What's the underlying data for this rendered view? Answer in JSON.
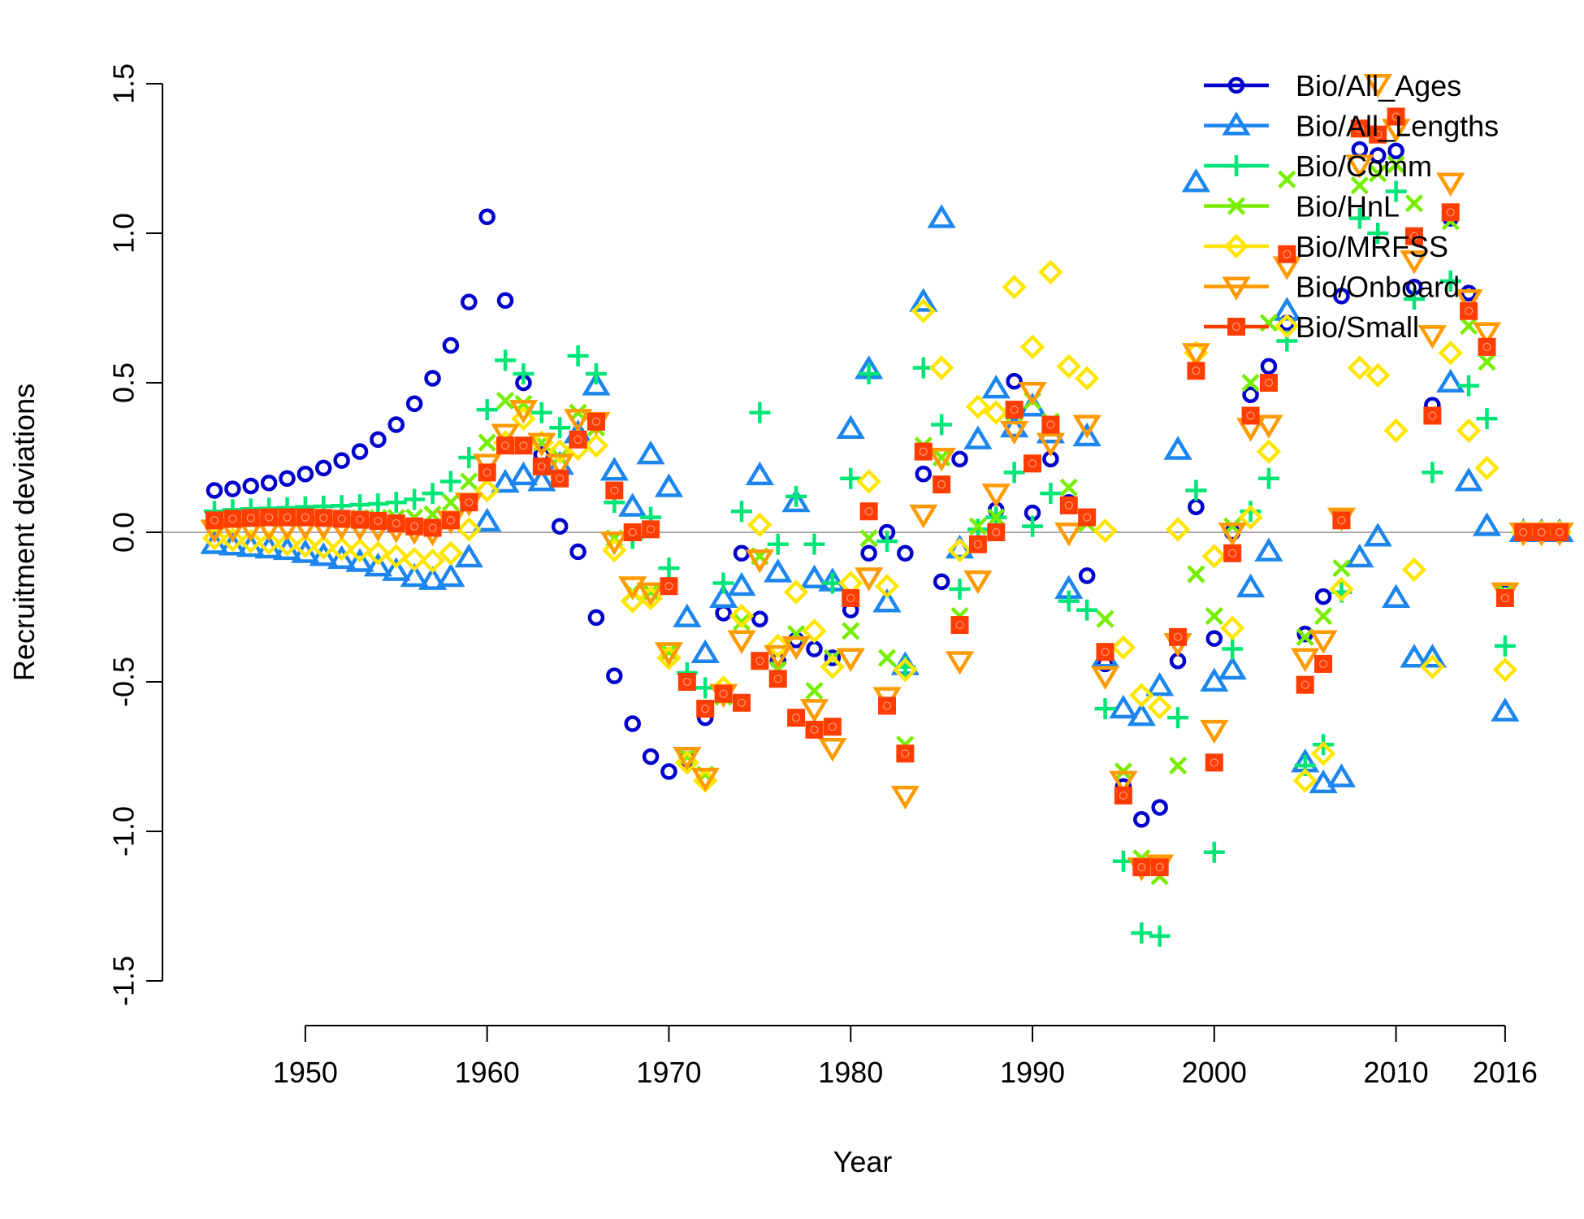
{
  "chart_data": {
    "type": "scatter",
    "title": "",
    "xlabel": "Year",
    "ylabel": "Recruitment deviations",
    "xlim": [
      1945,
      1947
    ],
    "ylim": [
      -1.5,
      1.5
    ],
    "x_ticks": [
      1950,
      1960,
      1970,
      1980,
      1990,
      2000,
      2010,
      2016
    ],
    "y_ticks": [
      -1.5,
      -1.0,
      -0.5,
      0.0,
      0.5,
      1.0,
      1.5
    ],
    "y_tick_labels": [
      "-1.5",
      "-1.0",
      "-0.5",
      "0.0",
      "0.5",
      "1.0",
      "1.5"
    ],
    "reference_line": 0,
    "grid": false,
    "legend_position": "top-right",
    "series": [
      {
        "name": "Bio/All_Ages",
        "color": "#0000CD",
        "marker": "circle",
        "x": [
          1945,
          1946,
          1947,
          1948,
          1949,
          1950,
          1951,
          1952,
          1953,
          1954,
          1955,
          1956,
          1957,
          1958,
          1959,
          1960,
          1961,
          1962,
          1963,
          1964,
          1965,
          1966,
          1967,
          1968,
          1969,
          1970,
          1971,
          1972,
          1973,
          1974,
          1975,
          1976,
          1977,
          1978,
          1979,
          1980,
          1981,
          1982,
          1983,
          1984,
          1985,
          1986,
          1987,
          1988,
          1989,
          1990,
          1991,
          1992,
          1993,
          1994,
          1995,
          1996,
          1997,
          1998,
          1999,
          2000,
          2001,
          2002,
          2003,
          2004,
          2005,
          2006,
          2007,
          2008,
          2009,
          2010,
          2011,
          2012,
          2013,
          2014,
          2015,
          2016,
          2017,
          2018,
          2019
        ],
        "y": [
          0.14,
          0.145,
          0.155,
          0.165,
          0.18,
          0.195,
          0.215,
          0.24,
          0.27,
          0.31,
          0.36,
          0.43,
          0.515,
          0.625,
          0.77,
          1.055,
          0.775,
          0.5,
          0.26,
          0.02,
          -0.065,
          -0.285,
          -0.48,
          -0.64,
          -0.75,
          -0.8,
          -0.76,
          -0.62,
          -0.27,
          -0.07,
          -0.29,
          -0.43,
          -0.36,
          -0.39,
          -0.42,
          -0.26,
          -0.07,
          0.0,
          -0.07,
          0.195,
          -0.165,
          0.245,
          -0.04,
          0.075,
          0.505,
          0.065,
          0.245,
          0.1,
          -0.145,
          -0.44,
          -0.85,
          -0.96,
          -0.92,
          -0.43,
          0.085,
          -0.355,
          0.0,
          0.46,
          0.555,
          0.7,
          -0.34,
          -0.215,
          0.79,
          1.28,
          1.26,
          1.275,
          0.82,
          0.425,
          1.05,
          0.8,
          0.62,
          -0.2,
          0.0,
          0.0,
          0.0
        ]
      },
      {
        "name": "Bio/All_Lengths",
        "color": "#1C86EE",
        "marker": "triangle",
        "x": [
          1945,
          1946,
          1947,
          1948,
          1949,
          1950,
          1951,
          1952,
          1953,
          1954,
          1955,
          1956,
          1957,
          1958,
          1959,
          1960,
          1961,
          1962,
          1963,
          1964,
          1965,
          1966,
          1967,
          1968,
          1969,
          1970,
          1971,
          1972,
          1973,
          1974,
          1975,
          1976,
          1977,
          1978,
          1979,
          1980,
          1981,
          1982,
          1983,
          1984,
          1985,
          1986,
          1987,
          1988,
          1989,
          1990,
          1991,
          1992,
          1993,
          1994,
          1995,
          1996,
          1997,
          1998,
          1999,
          2000,
          2001,
          2002,
          2003,
          2004,
          2005,
          2006,
          2007,
          2008,
          2009,
          2010,
          2011,
          2012,
          2013,
          2014,
          2015,
          2016,
          2017,
          2018,
          2019
        ],
        "y": [
          -0.04,
          -0.045,
          -0.05,
          -0.055,
          -0.06,
          -0.07,
          -0.08,
          -0.09,
          -0.1,
          -0.115,
          -0.13,
          -0.15,
          -0.16,
          -0.15,
          -0.085,
          0.035,
          0.165,
          0.19,
          0.17,
          0.225,
          0.33,
          0.49,
          0.205,
          0.085,
          0.26,
          0.15,
          -0.285,
          -0.405,
          -0.22,
          -0.18,
          0.19,
          -0.135,
          0.1,
          -0.155,
          -0.165,
          0.345,
          0.545,
          -0.235,
          -0.445,
          0.77,
          1.05,
          -0.055,
          0.31,
          0.48,
          0.35,
          0.42,
          0.33,
          -0.19,
          0.32,
          -0.42,
          -0.59,
          -0.615,
          -0.515,
          0.275,
          1.17,
          -0.5,
          -0.46,
          -0.185,
          -0.065,
          0.74,
          -0.77,
          -0.84,
          -0.82,
          -0.085,
          -0.015,
          -0.22,
          -0.42,
          -0.42,
          0.5,
          0.17,
          0.02,
          -0.6,
          0.0,
          0.0,
          0.0
        ]
      },
      {
        "name": "Bio/Comm",
        "color": "#00E676",
        "marker": "plus",
        "x": [
          1945,
          1946,
          1947,
          1948,
          1949,
          1950,
          1951,
          1952,
          1953,
          1954,
          1955,
          1956,
          1957,
          1958,
          1959,
          1960,
          1961,
          1962,
          1963,
          1964,
          1965,
          1966,
          1967,
          1968,
          1969,
          1970,
          1971,
          1972,
          1973,
          1974,
          1975,
          1976,
          1977,
          1978,
          1979,
          1980,
          1981,
          1982,
          1983,
          1984,
          1985,
          1986,
          1987,
          1988,
          1989,
          1990,
          1991,
          1992,
          1993,
          1994,
          1995,
          1996,
          1997,
          1998,
          1999,
          2000,
          2001,
          2002,
          2003,
          2004,
          2005,
          2006,
          2007,
          2008,
          2009,
          2010,
          2011,
          2012,
          2013,
          2014,
          2015,
          2016,
          2017,
          2018,
          2019
        ],
        "y": [
          0.07,
          0.075,
          0.078,
          0.08,
          0.082,
          0.085,
          0.087,
          0.089,
          0.092,
          0.095,
          0.1,
          0.11,
          0.13,
          0.17,
          0.25,
          0.41,
          0.575,
          0.53,
          0.4,
          0.35,
          0.59,
          0.53,
          0.1,
          -0.02,
          0.05,
          -0.12,
          -0.47,
          -0.52,
          -0.17,
          0.07,
          0.4,
          -0.04,
          0.12,
          -0.04,
          -0.17,
          0.18,
          0.53,
          -0.03,
          -0.45,
          0.55,
          0.36,
          -0.19,
          0.01,
          0.05,
          0.2,
          0.02,
          0.13,
          -0.23,
          -0.26,
          -0.59,
          -1.1,
          -1.34,
          -1.35,
          -0.62,
          0.14,
          -1.07,
          -0.39,
          0.07,
          0.18,
          0.64,
          -0.78,
          -0.71,
          -0.2,
          1.05,
          1.0,
          1.14,
          0.78,
          0.2,
          0.84,
          0.49,
          0.38,
          -0.38,
          0.0,
          0.0,
          0.0
        ]
      },
      {
        "name": "Bio/HnL",
        "color": "#76EE00",
        "marker": "x",
        "x": [
          1945,
          1946,
          1947,
          1948,
          1949,
          1950,
          1951,
          1952,
          1953,
          1954,
          1955,
          1956,
          1957,
          1958,
          1959,
          1960,
          1961,
          1962,
          1963,
          1964,
          1965,
          1966,
          1967,
          1968,
          1969,
          1970,
          1971,
          1972,
          1973,
          1974,
          1975,
          1976,
          1977,
          1978,
          1979,
          1980,
          1981,
          1982,
          1983,
          1984,
          1985,
          1986,
          1987,
          1988,
          1989,
          1990,
          1991,
          1992,
          1993,
          1994,
          1995,
          1996,
          1997,
          1998,
          1999,
          2000,
          2001,
          2002,
          2003,
          2004,
          2005,
          2006,
          2007,
          2008,
          2009,
          2010,
          2011,
          2012,
          2013,
          2014,
          2015,
          2016,
          2017,
          2018,
          2019
        ],
        "y": [
          0.03,
          0.035,
          0.038,
          0.04,
          0.042,
          0.045,
          0.046,
          0.047,
          0.048,
          0.048,
          0.048,
          0.05,
          0.06,
          0.1,
          0.17,
          0.3,
          0.44,
          0.43,
          0.3,
          0.25,
          0.4,
          0.35,
          -0.02,
          -0.2,
          -0.2,
          -0.4,
          -0.75,
          -0.81,
          -0.55,
          -0.3,
          -0.08,
          -0.46,
          -0.34,
          -0.53,
          -0.42,
          -0.33,
          -0.02,
          -0.42,
          -0.71,
          0.29,
          0.25,
          -0.28,
          0.02,
          0.05,
          0.4,
          0.44,
          0.37,
          0.15,
          0.03,
          -0.29,
          -0.8,
          -1.09,
          -1.15,
          -0.78,
          -0.14,
          -0.28,
          0.02,
          0.5,
          0.7,
          1.18,
          -0.35,
          -0.28,
          -0.12,
          1.16,
          1.2,
          1.23,
          1.1,
          0.39,
          1.04,
          0.69,
          0.57,
          -0.2,
          0.0,
          0.0,
          0.0
        ]
      },
      {
        "name": "Bio/MRFSS",
        "color": "#FFE600",
        "marker": "diamond",
        "x": [
          1945,
          1946,
          1947,
          1948,
          1949,
          1950,
          1951,
          1952,
          1953,
          1954,
          1955,
          1956,
          1957,
          1958,
          1959,
          1960,
          1961,
          1962,
          1963,
          1964,
          1965,
          1966,
          1967,
          1968,
          1969,
          1970,
          1971,
          1972,
          1973,
          1974,
          1975,
          1976,
          1977,
          1978,
          1979,
          1980,
          1981,
          1982,
          1983,
          1984,
          1985,
          1986,
          1987,
          1988,
          1989,
          1990,
          1991,
          1992,
          1993,
          1994,
          1995,
          1996,
          1997,
          1998,
          1999,
          2000,
          2001,
          2002,
          2003,
          2004,
          2005,
          2006,
          2007,
          2008,
          2009,
          2010,
          2011,
          2012,
          2013,
          2014,
          2015,
          2016,
          2017,
          2018,
          2019
        ],
        "y": [
          -0.02,
          -0.025,
          -0.03,
          -0.035,
          -0.04,
          -0.045,
          -0.05,
          -0.055,
          -0.06,
          -0.07,
          -0.08,
          -0.09,
          -0.095,
          -0.07,
          0.01,
          0.14,
          0.3,
          0.38,
          0.3,
          0.27,
          0.28,
          0.29,
          -0.06,
          -0.23,
          -0.22,
          -0.42,
          -0.77,
          -0.83,
          -0.52,
          -0.28,
          0.025,
          -0.38,
          -0.2,
          -0.33,
          -0.45,
          -0.17,
          0.17,
          -0.18,
          -0.46,
          0.74,
          0.55,
          -0.06,
          0.42,
          0.4,
          0.82,
          0.62,
          0.87,
          0.555,
          0.515,
          0.005,
          -0.385,
          -0.545,
          -0.585,
          0.01,
          0.6,
          -0.08,
          -0.32,
          0.05,
          0.27,
          0.69,
          -0.83,
          -0.74,
          -0.19,
          0.55,
          0.525,
          0.34,
          -0.125,
          -0.45,
          0.6,
          0.34,
          0.215,
          -0.46,
          0.0,
          0.0,
          0.0
        ]
      },
      {
        "name": "Bio/Onboard",
        "color": "#FF9A00",
        "marker": "triangle-down",
        "x": [
          1945,
          1946,
          1947,
          1948,
          1949,
          1950,
          1951,
          1952,
          1953,
          1954,
          1955,
          1956,
          1957,
          1958,
          1959,
          1960,
          1961,
          1962,
          1963,
          1964,
          1965,
          1966,
          1967,
          1968,
          1969,
          1970,
          1971,
          1972,
          1973,
          1974,
          1975,
          1976,
          1977,
          1978,
          1979,
          1980,
          1981,
          1982,
          1983,
          1984,
          1985,
          1986,
          1987,
          1988,
          1989,
          1990,
          1991,
          1992,
          1993,
          1994,
          1995,
          1996,
          1997,
          1998,
          1999,
          2000,
          2001,
          2002,
          2003,
          2004,
          2005,
          2006,
          2007,
          2008,
          2009,
          2010,
          2011,
          2012,
          2013,
          2014,
          2015,
          2016,
          2017,
          2018,
          2019
        ],
        "y": [
          0.01,
          0.012,
          0.014,
          0.016,
          0.018,
          0.02,
          0.02,
          0.02,
          0.018,
          0.015,
          0.01,
          0.005,
          0.0,
          0.04,
          0.1,
          0.23,
          0.33,
          0.41,
          0.3,
          0.23,
          0.38,
          0.37,
          -0.03,
          -0.18,
          -0.2,
          -0.4,
          -0.75,
          -0.82,
          -0.54,
          -0.36,
          -0.09,
          -0.41,
          -0.38,
          -0.59,
          -0.72,
          -0.42,
          -0.15,
          -0.55,
          -0.88,
          0.06,
          0.25,
          -0.43,
          -0.16,
          0.13,
          0.34,
          0.47,
          0.3,
          0.0,
          0.36,
          -0.48,
          -0.83,
          -1.12,
          -1.11,
          -0.37,
          0.6,
          -0.66,
          0.0,
          0.35,
          0.36,
          0.89,
          -0.42,
          -0.36,
          0.05,
          1.23,
          1.5,
          1.35,
          0.91,
          0.66,
          1.17,
          0.78,
          0.67,
          -0.2,
          0.0,
          0.0,
          0.0
        ]
      },
      {
        "name": "Bio/Small",
        "color": "#FF3D00",
        "marker": "square",
        "x": [
          1945,
          1946,
          1947,
          1948,
          1949,
          1950,
          1951,
          1952,
          1953,
          1954,
          1955,
          1956,
          1957,
          1958,
          1959,
          1960,
          1961,
          1962,
          1963,
          1964,
          1965,
          1966,
          1967,
          1968,
          1969,
          1970,
          1971,
          1972,
          1973,
          1974,
          1975,
          1976,
          1977,
          1978,
          1979,
          1980,
          1981,
          1982,
          1983,
          1984,
          1985,
          1986,
          1987,
          1988,
          1989,
          1990,
          1991,
          1992,
          1993,
          1994,
          1995,
          1996,
          1997,
          1998,
          1999,
          2000,
          2001,
          2002,
          2003,
          2004,
          2005,
          2006,
          2007,
          2008,
          2009,
          2010,
          2011,
          2012,
          2013,
          2014,
          2015,
          2016,
          2017,
          2018,
          2019
        ],
        "y": [
          0.04,
          0.045,
          0.048,
          0.05,
          0.05,
          0.05,
          0.048,
          0.045,
          0.042,
          0.038,
          0.03,
          0.02,
          0.015,
          0.04,
          0.1,
          0.2,
          0.29,
          0.29,
          0.22,
          0.18,
          0.31,
          0.37,
          0.14,
          0.0,
          0.01,
          -0.18,
          -0.5,
          -0.59,
          -0.54,
          -0.57,
          -0.43,
          -0.49,
          -0.62,
          -0.66,
          -0.65,
          -0.22,
          0.07,
          -0.58,
          -0.74,
          0.27,
          0.16,
          -0.31,
          -0.04,
          0.0,
          0.41,
          0.23,
          0.36,
          0.09,
          0.05,
          -0.4,
          -0.88,
          -1.12,
          -1.12,
          -0.35,
          0.54,
          -0.77,
          -0.07,
          0.39,
          0.5,
          0.93,
          -0.51,
          -0.44,
          0.04,
          1.35,
          1.33,
          1.39,
          0.99,
          0.39,
          1.07,
          0.74,
          0.62,
          -0.22,
          0.0,
          0.0,
          0.0
        ]
      }
    ]
  }
}
